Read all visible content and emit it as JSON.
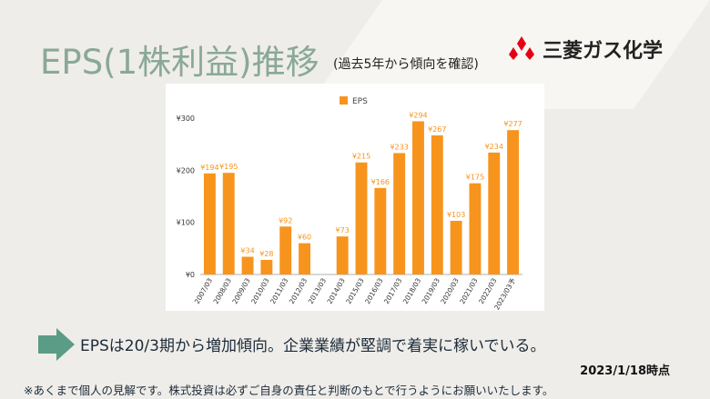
{
  "slide": {
    "title": "EPS(1株利益)推移",
    "subtitle": "(過去5年から傾向を確認)",
    "conclusion": "EPSは20/3期から増加傾向。企業業績が堅調で着実に稼いでいる。",
    "as_of": "2023/1/18時点",
    "disclaimer": "※あくまで個人の見解です。株式投資は必ずご自身の責任と判断のもとで行うようにお願いいたします。"
  },
  "logo": {
    "text": "三菱ガス化学",
    "color": "#e60012"
  },
  "colors": {
    "bar": "#f7941d",
    "label": "#f7941d",
    "title": "#8aa898",
    "arrow": "#5a9c86"
  },
  "chart_data": {
    "type": "bar",
    "categories": [
      "2007/03",
      "2008/03",
      "2009/03",
      "2010/03",
      "2011/03",
      "2012/03",
      "2013/03",
      "2014/03",
      "2015/03",
      "2016/03",
      "2017/03",
      "2018/03",
      "2019/03",
      "2020/03",
      "2021/03",
      "2022/03",
      "2023/03予"
    ],
    "series": [
      {
        "name": "EPS",
        "values": [
          194,
          195,
          34,
          28,
          92,
          60,
          null,
          73,
          215,
          166,
          233,
          294,
          267,
          103,
          175,
          234,
          277
        ],
        "labels": [
          "¥194",
          "¥195",
          "¥34",
          "¥28",
          "¥92",
          "¥60",
          "",
          "¥73",
          "¥215",
          "¥166",
          "¥233",
          "¥294",
          "¥267",
          "¥103",
          "¥175",
          "¥234",
          "¥277"
        ]
      }
    ],
    "yticks": [
      "¥0",
      "¥100",
      "¥200",
      "¥300"
    ],
    "ylim": [
      0,
      300
    ],
    "legend": "top",
    "grid": false
  }
}
